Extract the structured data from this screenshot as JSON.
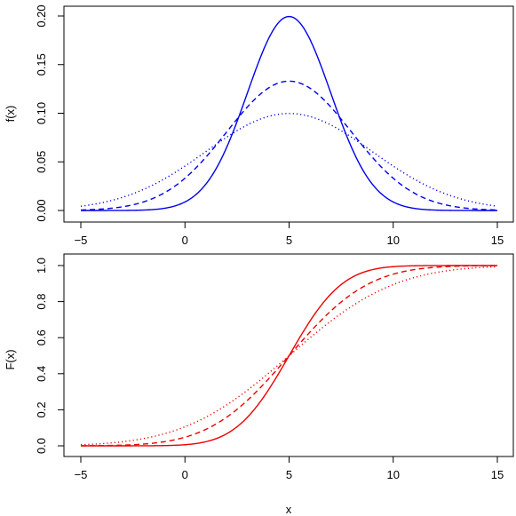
{
  "chart_data": [
    {
      "type": "line",
      "title": "",
      "xlabel": "",
      "ylabel": "f(x)",
      "xlim": [
        -5,
        15
      ],
      "ylim": [
        0,
        0.2
      ],
      "x_ticks": [
        -5,
        0,
        5,
        10,
        15
      ],
      "x_tick_labels": [
        "−5",
        "0",
        "5",
        "10",
        "15"
      ],
      "y_ticks": [
        0,
        0.05,
        0.1,
        0.15,
        0.2
      ],
      "y_tick_labels": [
        "0.00",
        "0.05",
        "0.10",
        "0.15",
        "0.20"
      ],
      "color": "#0000ee",
      "grid": false,
      "series": [
        {
          "line_style": "solid",
          "mean": 5,
          "sd": 2
        },
        {
          "line_style": "dashed",
          "mean": 5,
          "sd": 3
        },
        {
          "line_style": "dotted",
          "mean": 5,
          "sd": 4
        }
      ]
    },
    {
      "type": "line",
      "title": "",
      "xlabel": "x",
      "ylabel": "F(x)",
      "xlim": [
        -5,
        15
      ],
      "ylim": [
        0,
        1
      ],
      "x_ticks": [
        -5,
        0,
        5,
        10,
        15
      ],
      "x_tick_labels": [
        "−5",
        "0",
        "5",
        "10",
        "15"
      ],
      "y_ticks": [
        0,
        0.2,
        0.4,
        0.6,
        0.8,
        1.0
      ],
      "y_tick_labels": [
        "0.0",
        "0.2",
        "0.4",
        "0.6",
        "0.8",
        "1.0"
      ],
      "color": "#ee0000",
      "grid": false,
      "series": [
        {
          "line_style": "solid",
          "mean": 5,
          "sd": 2
        },
        {
          "line_style": "dashed",
          "mean": 5,
          "sd": 3
        },
        {
          "line_style": "dotted",
          "mean": 5,
          "sd": 4
        }
      ]
    }
  ]
}
